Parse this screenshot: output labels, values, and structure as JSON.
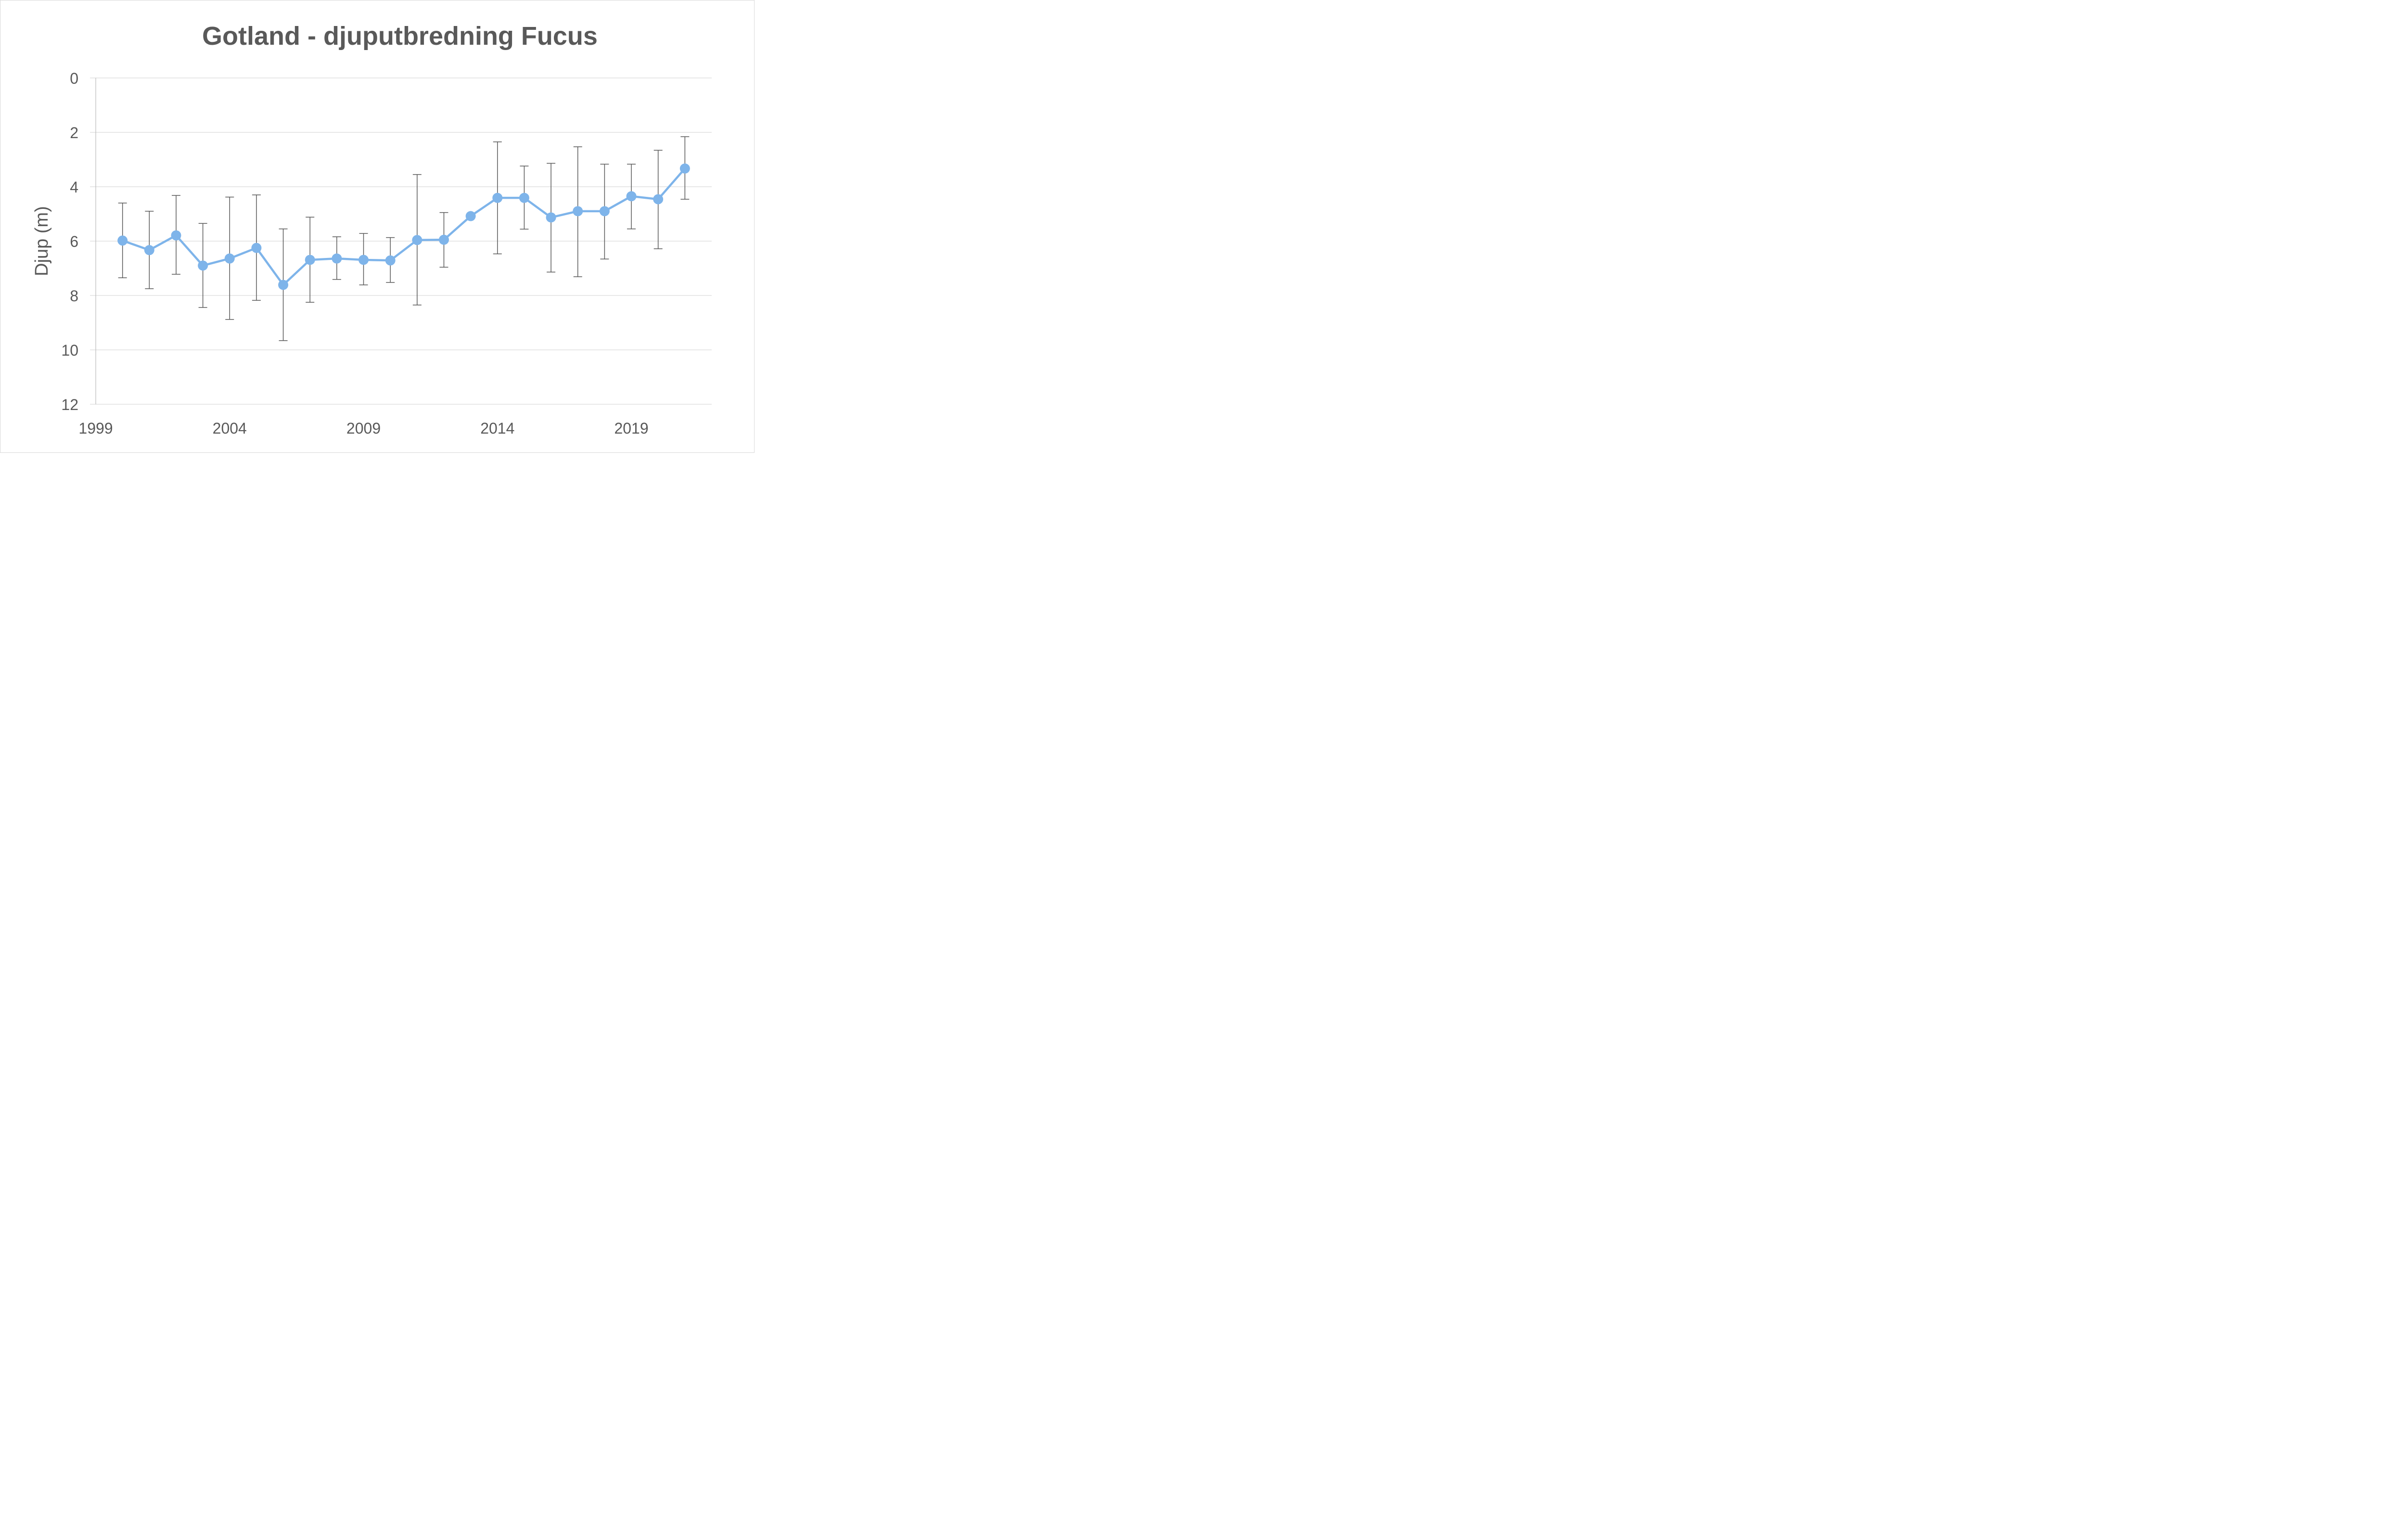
{
  "chart_data": {
    "type": "line",
    "title": "Gotland - djuputbredning Fucus",
    "xlabel": "",
    "ylabel": "Djup (m)",
    "ylim": [
      0,
      12
    ],
    "y_inverted": true,
    "y_ticks": [
      "0",
      "2",
      "4",
      "6",
      "8",
      "10",
      "12"
    ],
    "xlim": [
      1999,
      2022
    ],
    "x_ticks": [
      "1999",
      "2004",
      "2009",
      "2014",
      "2019"
    ],
    "grid": true,
    "legend": false,
    "line_color": "#7eb4ea",
    "errorbar_color": "#595959",
    "series": [
      {
        "name": "Djuputbredning Fucus",
        "x": [
          2000,
          2001,
          2002,
          2003,
          2004,
          2005,
          2006,
          2007,
          2008,
          2009,
          2010,
          2011,
          2012,
          2013,
          2014,
          2015,
          2016,
          2017,
          2018,
          2019,
          2020,
          2021
        ],
        "values": [
          5.98,
          6.33,
          5.79,
          6.9,
          6.64,
          6.25,
          7.61,
          6.69,
          6.64,
          6.69,
          6.71,
          5.96,
          5.95,
          5.08,
          4.41,
          4.41,
          5.13,
          4.9,
          4.9,
          4.35,
          4.46,
          3.33
        ],
        "error_upper": [
          4.6,
          4.9,
          4.32,
          5.35,
          4.38,
          4.3,
          5.55,
          5.12,
          5.84,
          5.72,
          5.87,
          3.55,
          4.95,
          null,
          2.35,
          3.24,
          3.14,
          2.53,
          3.17,
          3.17,
          2.66,
          2.16
        ],
        "error_lower": [
          7.35,
          7.75,
          7.22,
          8.44,
          8.88,
          8.18,
          9.66,
          8.25,
          7.41,
          7.61,
          7.52,
          8.35,
          6.96,
          null,
          6.47,
          5.56,
          7.14,
          7.31,
          6.66,
          5.55,
          6.28,
          4.46
        ]
      }
    ]
  }
}
